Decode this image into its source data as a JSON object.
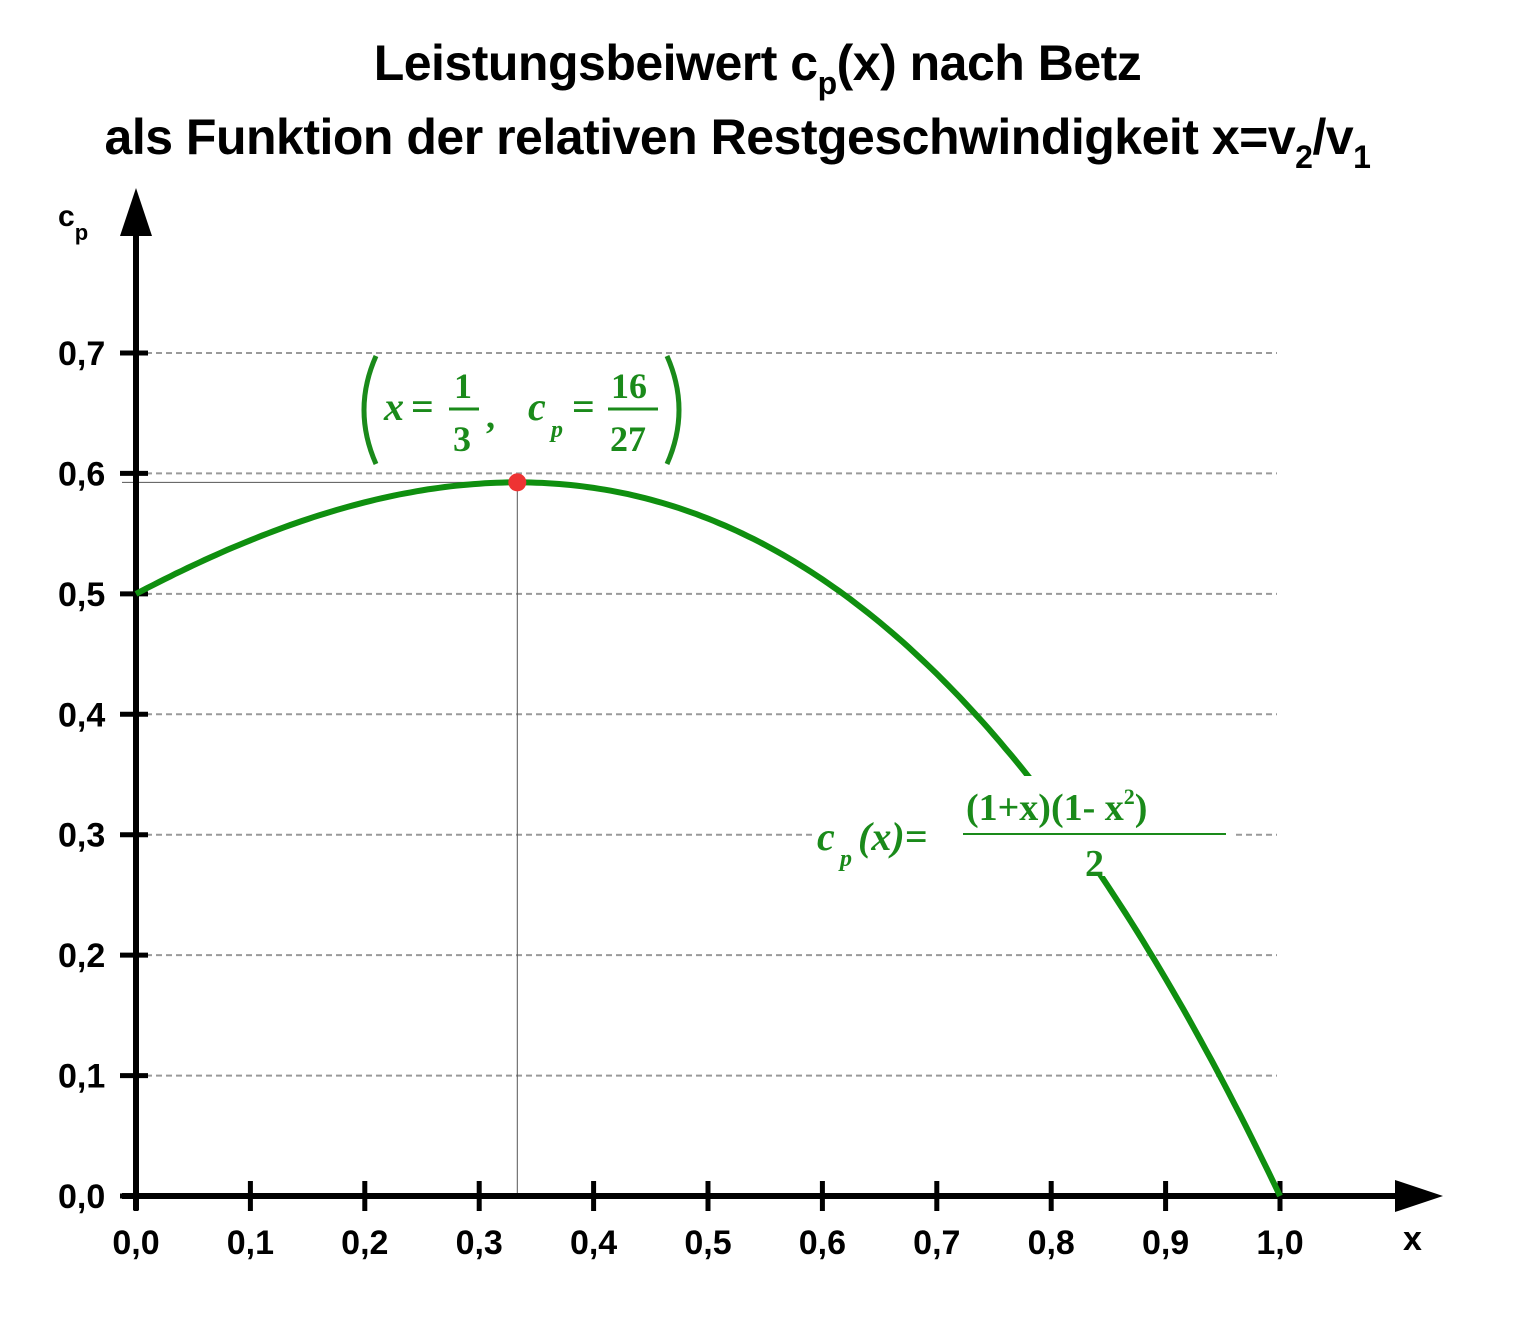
{
  "title": {
    "line1_pre": "Leistungsbeiwert c",
    "line1_sub": "p",
    "line1_post": "(x) nach Betz",
    "line2_pre": "als Funktion der relativen Restgeschwindigkeit x=v",
    "line2_sub1": "2",
    "line2_mid": "/v",
    "line2_sub2": "1"
  },
  "colors": {
    "curve": "#0f8f0f",
    "max_point": "#ee3333",
    "formula": "#1a8a1a",
    "grid": "#9a9a9a",
    "axis": "#000000"
  },
  "annotations": {
    "max_point": {
      "x_label": "x",
      "eq": "=",
      "x_num": "1",
      "x_den": "3",
      "comma": ",",
      "cp_label": "c",
      "cp_sub": "p",
      "cp_num": "16",
      "cp_den": "27"
    },
    "formula": {
      "lhs_c": "c",
      "lhs_sub": "p",
      "lhs_arg": "(x)=",
      "numerator": "(1+x)(1- x",
      "numerator_sup": "2",
      "numerator_close": ")",
      "denominator": "2"
    }
  },
  "chart_data": {
    "type": "line",
    "title": "Leistungsbeiwert cp(x) nach Betz als Funktion der relativen Restgeschwindigkeit x=v2/v1",
    "xlabel": "x",
    "ylabel": "cp",
    "xlim": [
      0.0,
      1.0
    ],
    "ylim": [
      0.0,
      0.7
    ],
    "grid": "horizontal dashed",
    "x_ticks": [
      "0,0",
      "0,1",
      "0,2",
      "0,3",
      "0,4",
      "0,5",
      "0,6",
      "0,7",
      "0,8",
      "0,9",
      "1,0"
    ],
    "y_ticks": [
      "0,0",
      "0,1",
      "0,2",
      "0,3",
      "0,4",
      "0,5",
      "0,6",
      "0,7"
    ],
    "function": "cp(x) = (1+x)(1-x^2)/2",
    "series": [
      {
        "name": "cp(x)",
        "x": [
          0.0,
          0.1,
          0.2,
          0.3,
          0.3333,
          0.4,
          0.5,
          0.6,
          0.7,
          0.8,
          0.9,
          1.0
        ],
        "values": [
          0.5,
          0.5445,
          0.576,
          0.5915,
          0.5926,
          0.588,
          0.5625,
          0.512,
          0.4335,
          0.324,
          0.1805,
          0.0
        ]
      }
    ],
    "max_point": {
      "x": 0.3333,
      "y": 0.5926,
      "label": "(x = 1/3, cp = 16/27)"
    }
  }
}
